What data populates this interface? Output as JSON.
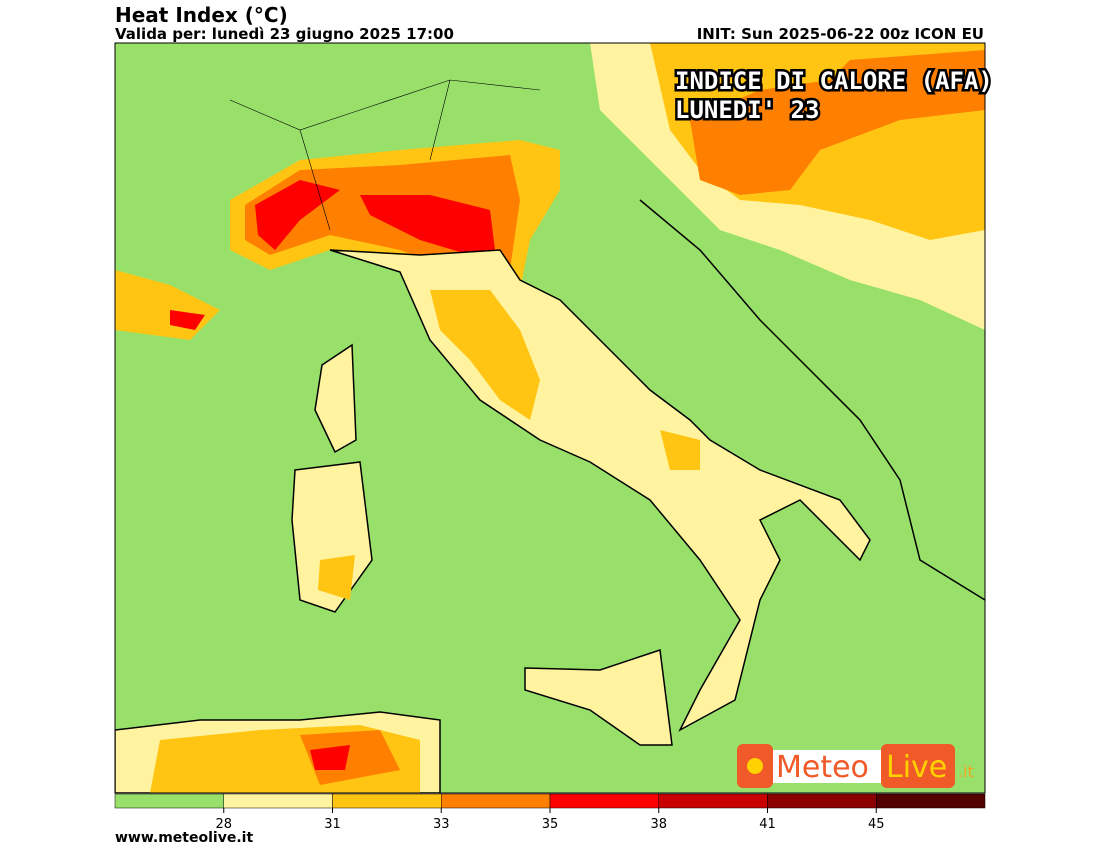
{
  "header": {
    "title": "Heat Index (°C)",
    "subtitle": "Valida per: lunedì 23 giugno 2025 17:00",
    "init": "INIT: Sun 2025-06-22 00z ICON EU"
  },
  "overlay": {
    "line1": "INDICE DI CALORE (AFA)",
    "line2": "LUNEDI' 23"
  },
  "logo": {
    "part1": "Meteo",
    "part2": "Live",
    "part3": ".it"
  },
  "colorbar": {
    "ticks": [
      28,
      31,
      33,
      35,
      38,
      41,
      45
    ],
    "colors": [
      "#98e06a",
      "#fff3a0",
      "#ffc512",
      "#ff7f00",
      "#ff0000",
      "#c80000",
      "#8b0000",
      "#520000"
    ]
  },
  "footer": {
    "url": "www.meteolive.it"
  }
}
